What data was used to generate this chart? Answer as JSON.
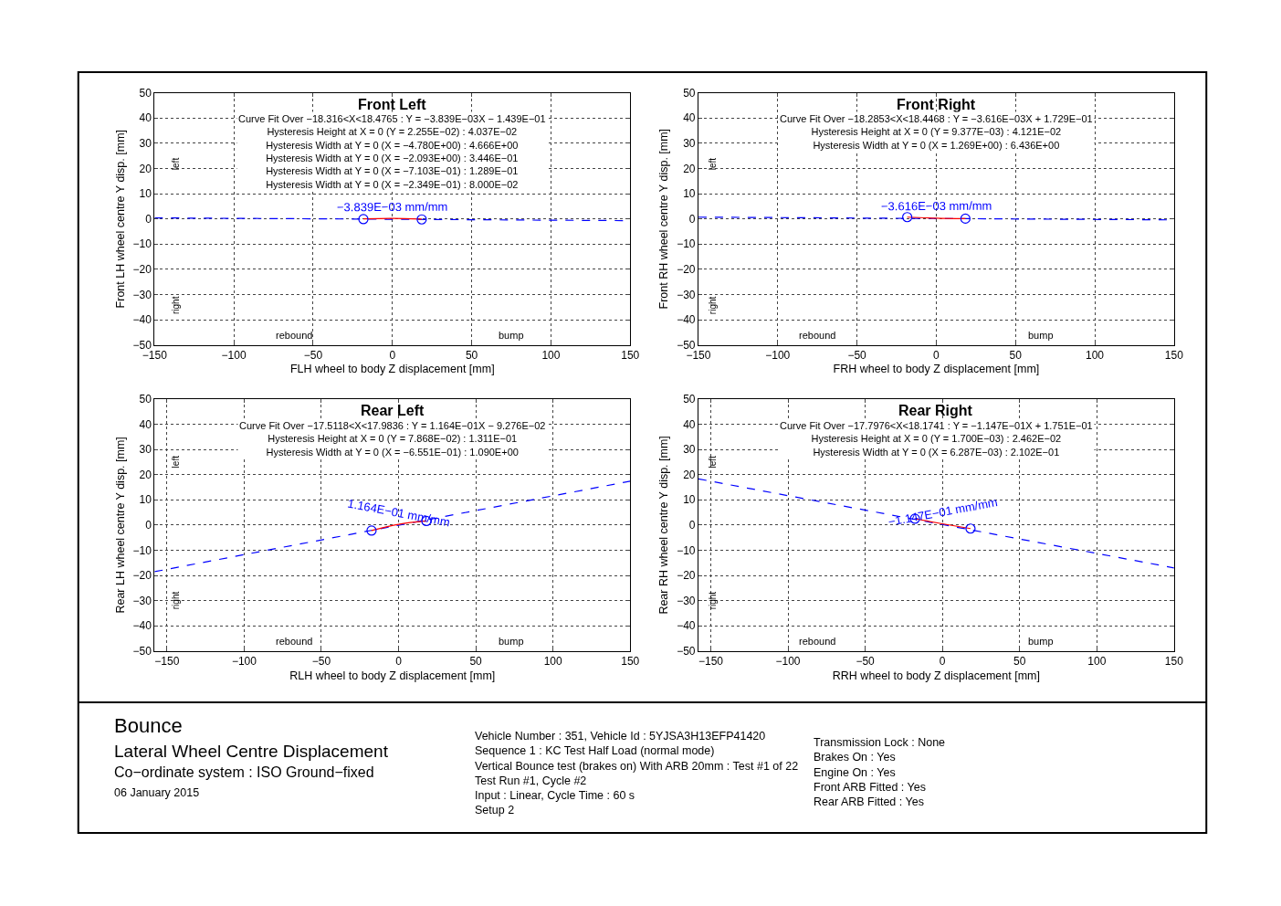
{
  "chart_data": [
    {
      "type": "line",
      "title": "Front Left",
      "xlabel": "FLH wheel to body Z displacement [mm]",
      "ylabel": "Front LH wheel centre Y disp. [mm]",
      "xlim": [
        -150,
        150
      ],
      "xticks": [
        -150,
        -100,
        -50,
        0,
        50,
        100,
        150
      ],
      "ylim": [
        -50,
        50
      ],
      "yticks": [
        -50,
        -40,
        -30,
        -20,
        -10,
        0,
        10,
        20,
        30,
        40,
        50
      ],
      "grid": true,
      "annotations": [
        "Curve Fit Over −18.316<X<18.4765 : Y = −3.839E−03X − 1.439E−01\nHysteresis Height at X = 0 (Y = 2.255E−02) : 4.037E−02\nHysteresis Width at Y = 0 (X = −4.780E+00) : 4.666E+00\nHysteresis Width at Y = 0 (X = −2.093E+00) : 3.446E−01\nHysteresis Width at Y = 0 (X = −7.103E−01) : 1.289E−01\nHysteresis Width at Y = 0 (X = −2.349E−01) : 8.000E−02",
        "left",
        "right",
        "rebound",
        "bump",
        "−3.839E−03 mm/mm"
      ],
      "series": [
        {
          "type": "line",
          "color": "#0000ff",
          "line_style": "dashed",
          "x": [
            -150,
            150
          ],
          "values": [
            0.4,
            -0.7
          ]
        },
        {
          "type": "line",
          "color": "#ff0000",
          "line_style": "solid",
          "x": [
            -18.3,
            0,
            18.5
          ],
          "values": [
            0.0,
            0.2,
            -0.1
          ]
        },
        {
          "type": "scatter",
          "color": "#0000ff",
          "marker": "circle",
          "x": [
            -18.3,
            18.5
          ],
          "values": [
            -0.1,
            -0.2
          ]
        }
      ]
    },
    {
      "type": "line",
      "title": "Front Right",
      "xlabel": "FRH wheel to body Z displacement [mm]",
      "ylabel": "Front RH wheel centre Y disp. [mm]",
      "xlim": [
        -150,
        150
      ],
      "xticks": [
        -150,
        -100,
        -50,
        0,
        50,
        100,
        150
      ],
      "ylim": [
        -50,
        50
      ],
      "yticks": [
        -50,
        -40,
        -30,
        -20,
        -10,
        0,
        10,
        20,
        30,
        40,
        50
      ],
      "grid": true,
      "annotations": [
        "Curve Fit Over −18.2853<X<18.4468 : Y = −3.616E−03X + 1.729E−01\nHysteresis Height at X = 0 (Y = 9.377E−03) : 4.121E−02\nHysteresis Width at Y = 0 (X = 1.269E+00) : 6.436E+00",
        "left",
        "right",
        "rebound",
        "bump",
        "−3.616E−03 mm/mm"
      ],
      "series": [
        {
          "type": "line",
          "color": "#0000ff",
          "line_style": "dashed",
          "x": [
            -150,
            150
          ],
          "values": [
            0.7,
            -0.4
          ]
        },
        {
          "type": "line",
          "color": "#ff0000",
          "line_style": "solid",
          "x": [
            -18.3,
            0,
            18.4
          ],
          "values": [
            0.7,
            0.3,
            0.1
          ]
        },
        {
          "type": "scatter",
          "color": "#0000ff",
          "marker": "circle",
          "x": [
            -18.3,
            18.4
          ],
          "values": [
            0.7,
            0.1
          ]
        }
      ]
    },
    {
      "type": "line",
      "title": "Rear Left",
      "xlabel": "RLH wheel to body Z displacement [mm]",
      "ylabel": "Rear LH wheel centre Y disp. [mm]",
      "xlim": [
        -158,
        150
      ],
      "xticks": [
        -150,
        -100,
        -50,
        0,
        50,
        100,
        150
      ],
      "ylim": [
        -50,
        50
      ],
      "yticks": [
        -50,
        -40,
        -30,
        -20,
        -10,
        0,
        10,
        20,
        30,
        40,
        50
      ],
      "grid": true,
      "annotations": [
        "Curve Fit Over −17.5118<X<17.9836 : Y = 1.164E−01X − 9.276E−02\nHysteresis Height at X = 0 (Y = 7.868E−02) : 1.311E−01\nHysteresis Width at Y = 0 (X = −6.551E−01) : 1.090E+00",
        "left",
        "right",
        "rebound",
        "bump",
        "1.164E−01 mm/mm"
      ],
      "series": [
        {
          "type": "line",
          "color": "#0000ff",
          "line_style": "dashed",
          "x": [
            -158,
            150
          ],
          "values": [
            -18.5,
            17.4
          ]
        },
        {
          "type": "line",
          "color": "#ff0000",
          "line_style": "solid",
          "x": [
            -17.5,
            0,
            18.0
          ],
          "values": [
            -2.2,
            0.3,
            1.6
          ]
        },
        {
          "type": "scatter",
          "color": "#0000ff",
          "marker": "circle",
          "x": [
            -17.5,
            18.0
          ],
          "values": [
            -2.2,
            1.6
          ]
        }
      ]
    },
    {
      "type": "line",
      "title": "Rear Right",
      "xlabel": "RRH wheel to body Z displacement [mm]",
      "ylabel": "Rear RH wheel centre Y disp. [mm]",
      "xlim": [
        -158,
        150
      ],
      "xticks": [
        -150,
        -100,
        -50,
        0,
        50,
        100,
        150
      ],
      "ylim": [
        -50,
        50
      ],
      "yticks": [
        -50,
        -40,
        -30,
        -20,
        -10,
        0,
        10,
        20,
        30,
        40,
        50
      ],
      "grid": true,
      "annotations": [
        "Curve Fit Over −17.7976<X<18.1741 : Y = −1.147E−01X + 1.751E−01\nHysteresis Height at X = 0 (Y = 1.700E−03) : 2.462E−02\nHysteresis Width at Y = 0 (X = 6.287E−03) : 2.102E−01",
        "left",
        "right",
        "rebound",
        "bump",
        "−1.147E−01 mm/mm"
      ],
      "series": [
        {
          "type": "line",
          "color": "#0000ff",
          "line_style": "dashed",
          "x": [
            -158,
            150
          ],
          "values": [
            18.3,
            -17.0
          ]
        },
        {
          "type": "line",
          "color": "#ff0000",
          "line_style": "solid",
          "x": [
            -17.8,
            0,
            18.2
          ],
          "values": [
            2.5,
            0.5,
            -1.4
          ]
        },
        {
          "type": "scatter",
          "color": "#0000ff",
          "marker": "circle",
          "x": [
            -17.8,
            18.2
          ],
          "values": [
            2.5,
            -1.4
          ]
        }
      ]
    },
    {
      "type": "other",
      "title": "Bounce",
      "annotations": [
        "Lateral Wheel Centre Displacement",
        "Co−ordinate system : ISO Ground−fixed",
        "06 January 2015",
        "Vehicle Number : 351, Vehicle Id : 5YJSA3H13EFP41420\nSequence 1 : KC Test Half Load (normal mode)\nVertical Bounce test (brakes on) With ARB 20mm : Test #1 of 22\nTest Run #1, Cycle #2\nInput : Linear, Cycle Time : 60 s\nSetup 2",
        "Transmission Lock : None\nBrakes On : Yes\nEngine On : Yes\nFront ARB Fitted : Yes\nRear ARB Fitted : Yes"
      ]
    }
  ]
}
